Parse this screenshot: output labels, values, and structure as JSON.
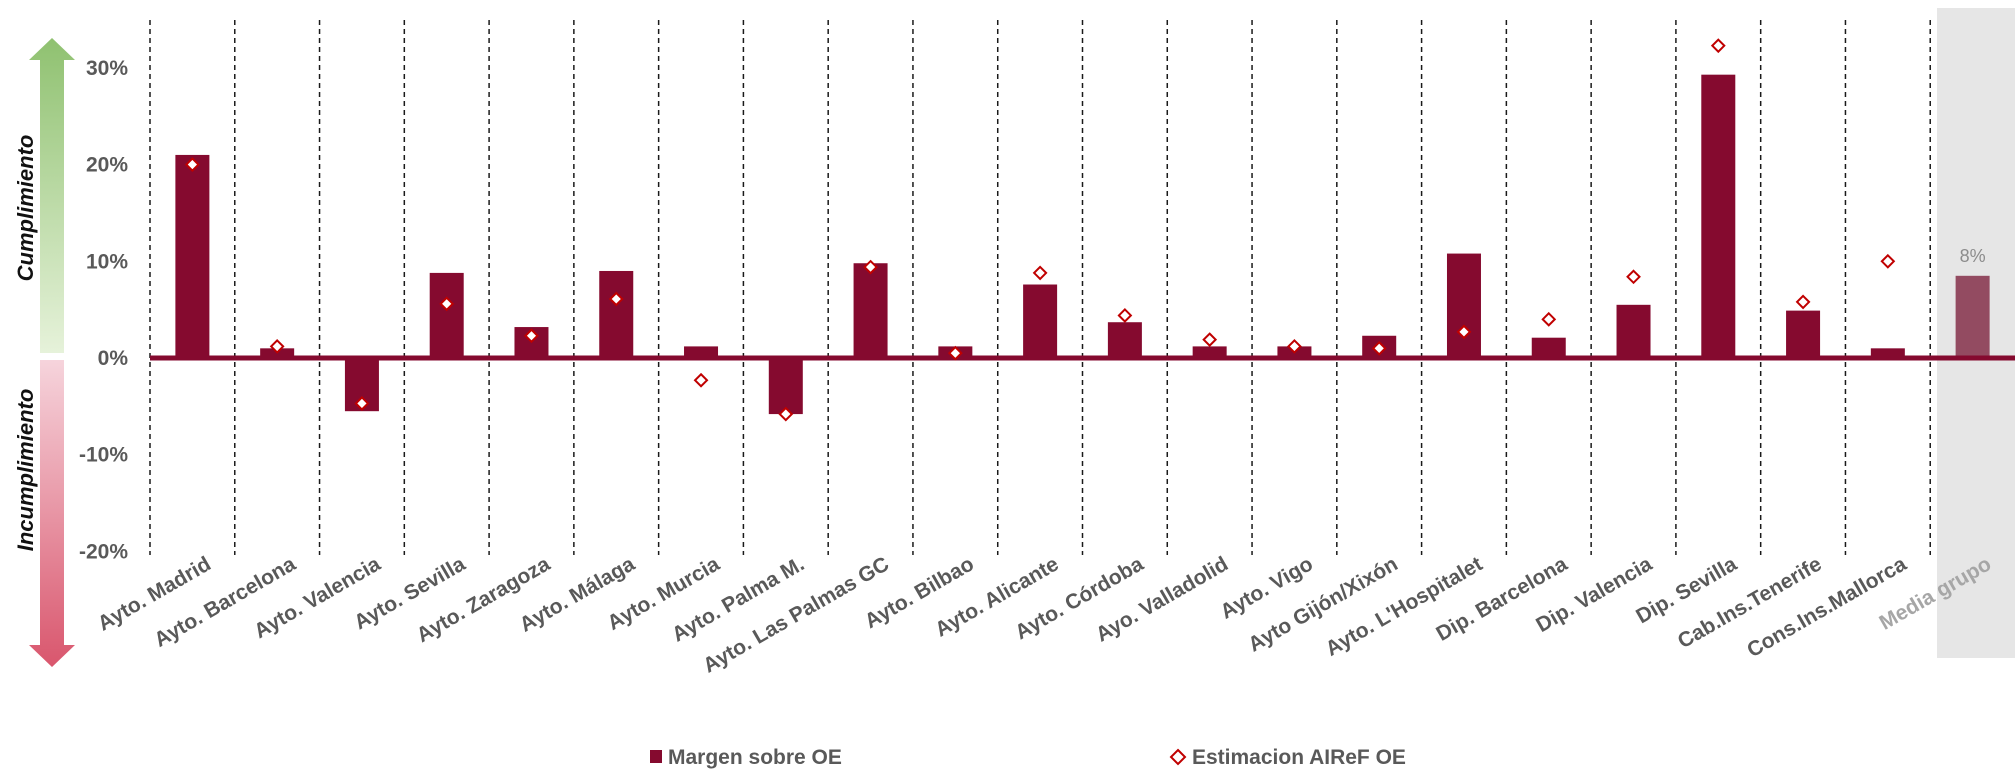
{
  "chart_data": {
    "type": "bar",
    "categories": [
      "Ayto. Madrid",
      "Ayto. Barcelona",
      "Ayto. Valencia",
      "Ayto. Sevilla",
      "Ayto. Zaragoza",
      "Ayto. Málaga",
      "Ayto. Murcia",
      "Ayto. Palma M.",
      "Ayto. Las Palmas GC",
      "Ayto. Bilbao",
      "Ayto. Alicante",
      "Ayto. Córdoba",
      "Ayo. Valladolid",
      "Ayto. Vigo",
      "Ayto Gijón/Xixón",
      "Ayto. L'Hospitalet",
      "Dip. Barcelona",
      "Dip. Valencia",
      "Dip. Sevilla",
      "Cab.Ins.Tenerife",
      "Cons.Ins.Mallorca",
      "Media grupo"
    ],
    "series": [
      {
        "name": "Margen sobre OE",
        "kind": "bar",
        "color": "#850a2f",
        "values": [
          21.0,
          1.0,
          -5.5,
          8.8,
          3.2,
          9.0,
          1.2,
          -5.8,
          9.8,
          1.2,
          7.6,
          3.7,
          1.2,
          1.2,
          2.3,
          10.8,
          2.1,
          5.5,
          29.3,
          4.9,
          1.0,
          8.5
        ]
      },
      {
        "name": "Estimacion AIReF OE",
        "kind": "marker",
        "color": "#c00000",
        "values": [
          20.0,
          1.2,
          -4.7,
          5.6,
          2.3,
          6.1,
          -2.3,
          -5.8,
          9.4,
          0.5,
          8.8,
          4.4,
          1.9,
          1.2,
          1.0,
          2.7,
          4.0,
          8.4,
          32.3,
          5.8,
          10.0,
          null
        ]
      }
    ],
    "highlight_category": "Media grupo",
    "highlight_label": "8%",
    "highlight_color": "#934b61",
    "ylim": [
      -20,
      30
    ],
    "yticks": [
      -20,
      -10,
      0,
      10,
      20,
      30
    ],
    "ytick_labels": [
      "-20%",
      "-10%",
      "0%",
      "10%",
      "20%",
      "30%"
    ],
    "ylabel_upper": "Cumplimiento",
    "ylabel_lower": "Incumplimiento",
    "grid": "vertical-dashed",
    "legend_position": "bottom"
  }
}
